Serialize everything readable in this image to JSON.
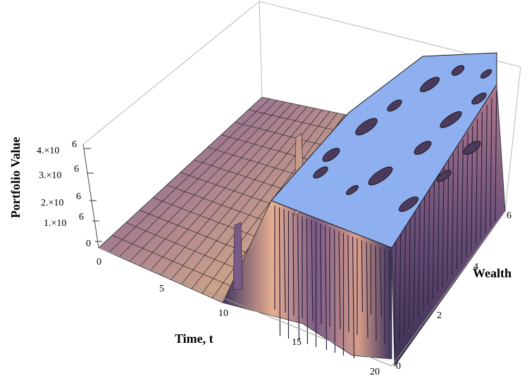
{
  "chart_data": {
    "type": "surface3d",
    "xlabel": "Time, t",
    "ylabel": "Wealth",
    "zlabel": "Portfolio Value",
    "x_ticks": [
      "0",
      "5",
      "10",
      "15",
      "20"
    ],
    "y_ticks": [
      "0",
      "2",
      "4",
      "6"
    ],
    "z_ticks": [
      "0",
      "1.×10",
      "2.×10",
      "3.×10",
      "4.×10"
    ],
    "z_tick_exponent": "6",
    "xlim": [
      0,
      20
    ],
    "ylim": [
      0,
      6
    ],
    "zlim": [
      0,
      4000000
    ],
    "regimes": [
      {
        "t_range": [
          0,
          10
        ],
        "portfolio_value": 0,
        "description": "flat near zero"
      },
      {
        "t_range": [
          10,
          20
        ],
        "portfolio_value": 4000000,
        "description": "jumps to top plateau"
      }
    ],
    "colors": {
      "plateau": "#8fb0f0",
      "wall_dark": "#3f3460",
      "wall_mid": "#7a5a88",
      "wall_light": "#e9b090",
      "box": "#b8b8b8"
    }
  }
}
